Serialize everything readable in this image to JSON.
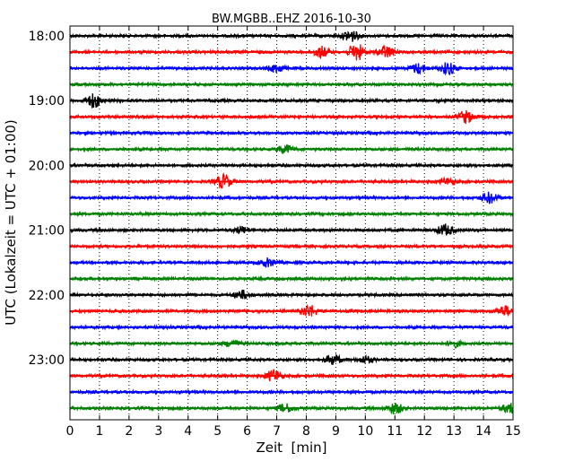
{
  "chart_data": {
    "type": "line",
    "subtype": "helicorder",
    "title": "BW.MGBB..EHZ 2016-10-30",
    "xlabel": "Zeit  [min]",
    "ylabel": "UTC (Lokalzeit = UTC + 01:00)",
    "xlim": [
      0,
      15
    ],
    "xticks": [
      0,
      1,
      2,
      3,
      4,
      5,
      6,
      7,
      8,
      9,
      10,
      11,
      12,
      13,
      14,
      15
    ],
    "x_grid": true,
    "y_tick_labels": [
      "18:00",
      "19:00",
      "20:00",
      "21:00",
      "22:00",
      "23:00"
    ],
    "line_minutes": 15,
    "color_cycle": [
      "#000000",
      "#ff0000",
      "#0000ff",
      "#008000"
    ],
    "traces": [
      {
        "start": "18:00",
        "events": [
          {
            "t": 9.5,
            "amp": 0.22
          }
        ]
      },
      {
        "start": "18:15",
        "events": [
          {
            "t": 8.5,
            "amp": 0.2
          },
          {
            "t": 9.7,
            "amp": 0.32
          },
          {
            "t": 10.7,
            "amp": 0.22
          }
        ]
      },
      {
        "start": "18:30",
        "events": [
          {
            "t": 7.0,
            "amp": 0.15
          },
          {
            "t": 11.8,
            "amp": 0.18
          },
          {
            "t": 12.8,
            "amp": 0.22
          }
        ]
      },
      {
        "start": "18:45",
        "events": []
      },
      {
        "start": "19:00",
        "events": [
          {
            "t": 0.8,
            "amp": 0.25
          }
        ]
      },
      {
        "start": "19:15",
        "events": [
          {
            "t": 13.4,
            "amp": 0.22
          }
        ]
      },
      {
        "start": "19:30",
        "events": []
      },
      {
        "start": "19:45",
        "events": [
          {
            "t": 7.3,
            "amp": 0.15
          }
        ]
      },
      {
        "start": "20:00",
        "events": []
      },
      {
        "start": "20:15",
        "events": [
          {
            "t": 5.2,
            "amp": 0.25
          },
          {
            "t": 12.8,
            "amp": 0.12
          }
        ]
      },
      {
        "start": "20:30",
        "events": [
          {
            "t": 14.2,
            "amp": 0.2
          }
        ]
      },
      {
        "start": "20:45",
        "events": []
      },
      {
        "start": "21:00",
        "events": [
          {
            "t": 12.7,
            "amp": 0.2
          },
          {
            "t": 5.8,
            "amp": 0.12
          }
        ]
      },
      {
        "start": "21:15",
        "events": []
      },
      {
        "start": "21:30",
        "events": [
          {
            "t": 6.7,
            "amp": 0.15
          }
        ]
      },
      {
        "start": "21:45",
        "events": []
      },
      {
        "start": "22:00",
        "events": [
          {
            "t": 5.8,
            "amp": 0.15
          }
        ]
      },
      {
        "start": "22:15",
        "events": [
          {
            "t": 8.1,
            "amp": 0.22
          },
          {
            "t": 14.7,
            "amp": 0.18
          }
        ]
      },
      {
        "start": "22:30",
        "events": []
      },
      {
        "start": "22:45",
        "events": [
          {
            "t": 5.5,
            "amp": 0.12
          },
          {
            "t": 13.0,
            "amp": 0.12
          }
        ]
      },
      {
        "start": "23:00",
        "events": [
          {
            "t": 8.9,
            "amp": 0.18
          },
          {
            "t": 10.0,
            "amp": 0.12
          }
        ]
      },
      {
        "start": "23:15",
        "events": [
          {
            "t": 6.9,
            "amp": 0.22
          }
        ]
      },
      {
        "start": "23:30",
        "events": []
      },
      {
        "start": "23:45",
        "events": [
          {
            "t": 7.3,
            "amp": 0.15
          },
          {
            "t": 11.0,
            "amp": 0.2
          },
          {
            "t": 14.9,
            "amp": 0.18
          }
        ]
      }
    ]
  }
}
